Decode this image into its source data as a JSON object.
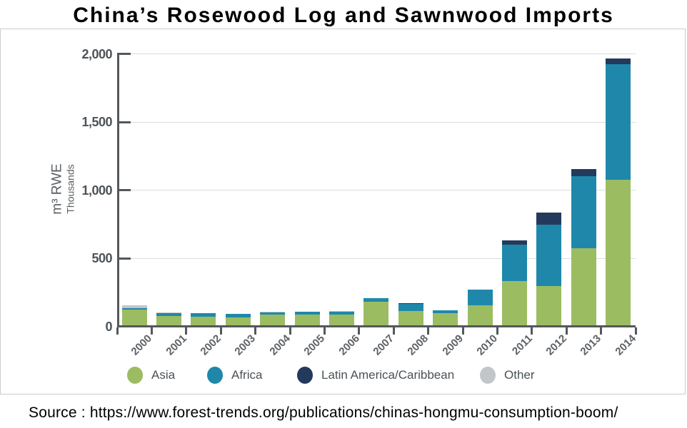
{
  "title": "China’s Rosewood Log and Sawnwood Imports",
  "source_text": "Source : https://www.forest-trends.org/publications/chinas-hongmu-consumption-boom/",
  "chart_data": {
    "type": "bar",
    "stacked": true,
    "title": "China’s Rosewood Log and Sawnwood Imports",
    "categories": [
      "2000",
      "2001",
      "2002",
      "2003",
      "2004",
      "2005",
      "2006",
      "2007",
      "2008",
      "2009",
      "2010",
      "2011",
      "2012",
      "2013",
      "2014"
    ],
    "series": [
      {
        "name": "Asia",
        "color": "#9cbc62",
        "values": [
          125,
          80,
          72,
          68,
          90,
          91,
          90,
          185,
          115,
          97,
          155,
          337,
          300,
          573,
          1078
        ]
      },
      {
        "name": "Africa",
        "color": "#1f88aa",
        "values": [
          13,
          18,
          27,
          25,
          16,
          17,
          19,
          25,
          52,
          25,
          117,
          263,
          447,
          532,
          848
        ]
      },
      {
        "name": "Latin America/Caribbean",
        "color": "#233a5c",
        "values": [
          0,
          0,
          0,
          0,
          0,
          0,
          0,
          0,
          8,
          0,
          0,
          35,
          88,
          52,
          39
        ]
      },
      {
        "name": "Other",
        "color": "#c2c6c9",
        "values": [
          17,
          5,
          0,
          0,
          5,
          0,
          8,
          0,
          0,
          0,
          0,
          0,
          0,
          0,
          0
        ]
      }
    ],
    "ylabel": "m³ RWE",
    "ylabel_sub": "Thousands",
    "ylim": [
      0,
      2000
    ],
    "yticks": [
      {
        "value": 0,
        "label": "0"
      },
      {
        "value": 500,
        "label": "500"
      },
      {
        "value": 1000,
        "label": "1,000"
      },
      {
        "value": 1500,
        "label": "1,500"
      },
      {
        "value": 2000,
        "label": "2,000"
      }
    ],
    "grid": true,
    "legend_position": "bottom"
  },
  "legend": {
    "items": [
      {
        "label": "Asia",
        "color": "#9cbc62"
      },
      {
        "label": "Africa",
        "color": "#1f88aa"
      },
      {
        "label": "Latin America/Caribbean",
        "color": "#233a5c"
      },
      {
        "label": "Other",
        "color": "#c2c6c9"
      }
    ]
  },
  "colors": {
    "axis": "#53585c",
    "grid": "#dadcdd",
    "tick_text": "#4d5358",
    "xlabel_text": "#5d6266",
    "legend_text": "#4b5156",
    "frame_border": "#c9cccd"
  }
}
